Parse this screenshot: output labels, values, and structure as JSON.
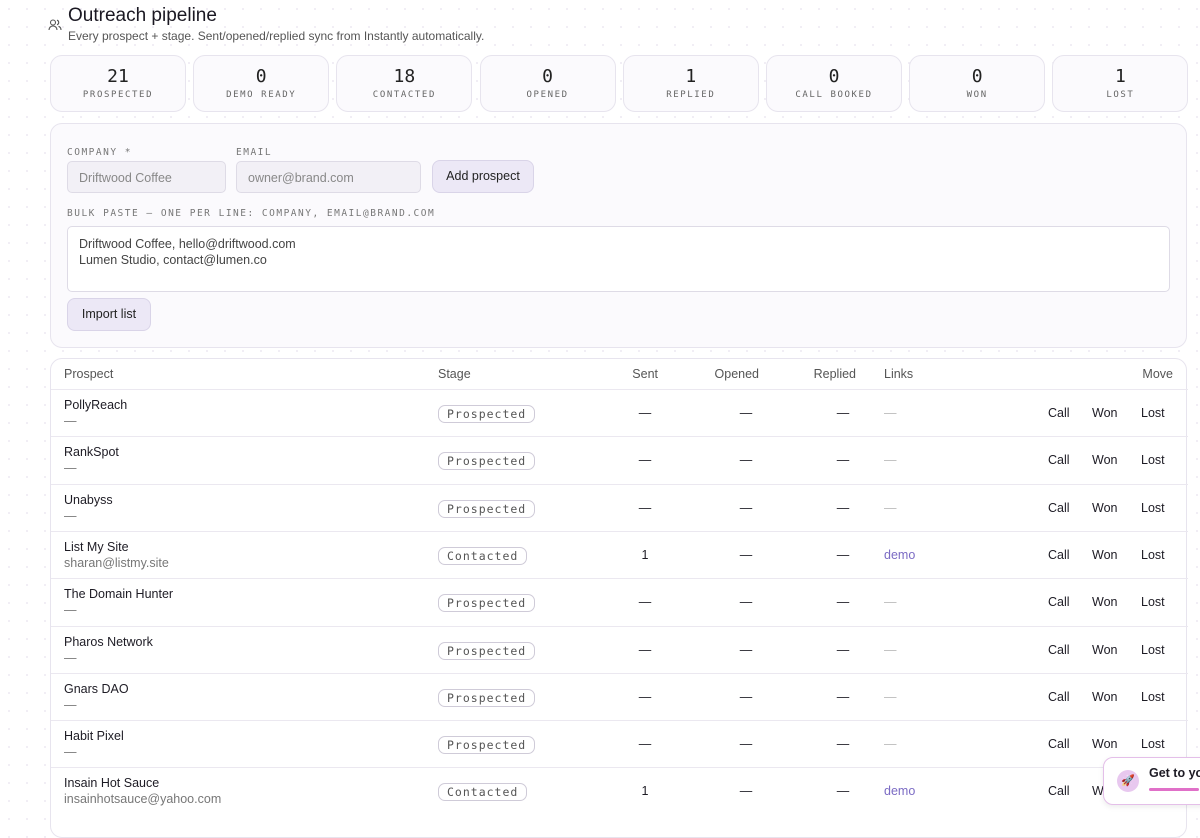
{
  "header": {
    "title": "Outreach pipeline",
    "subtitle": "Every prospect + stage. Sent/opened/replied sync from Instantly automatically."
  },
  "stats": [
    {
      "value": 21,
      "label": "PROSPECTED"
    },
    {
      "value": 0,
      "label": "DEMO READY"
    },
    {
      "value": 18,
      "label": "CONTACTED"
    },
    {
      "value": 0,
      "label": "OPENED"
    },
    {
      "value": 1,
      "label": "REPLIED"
    },
    {
      "value": 0,
      "label": "CALL BOOKED"
    },
    {
      "value": 0,
      "label": "WON"
    },
    {
      "value": 1,
      "label": "LOST"
    }
  ],
  "form": {
    "company_label": "COMPANY *",
    "company_placeholder": "Driftwood Coffee",
    "email_label": "EMAIL",
    "email_placeholder": "owner@brand.com",
    "add_button": "Add prospect",
    "bulk_label": "BULK PASTE — ONE PER LINE: COMPANY, EMAIL@BRAND.COM",
    "bulk_placeholder": "Driftwood Coffee, hello@driftwood.com\nLumen Studio, contact@lumen.co",
    "import_button": "Import list"
  },
  "table": {
    "columns": [
      "Prospect",
      "Stage",
      "Sent",
      "Opened",
      "Replied",
      "Links",
      "Move"
    ],
    "actions": [
      "Call",
      "Won",
      "Lost"
    ],
    "rows": [
      {
        "name": "PollyReach",
        "email": "—",
        "stage": "Prospected",
        "sent": "—",
        "opened": "—",
        "replied": "—",
        "links": "—"
      },
      {
        "name": "RankSpot",
        "email": "—",
        "stage": "Prospected",
        "sent": "—",
        "opened": "—",
        "replied": "—",
        "links": "—"
      },
      {
        "name": "Unabyss",
        "email": "—",
        "stage": "Prospected",
        "sent": "—",
        "opened": "—",
        "replied": "—",
        "links": "—"
      },
      {
        "name": "List My Site",
        "email": "sharan@listmy.site",
        "stage": "Contacted",
        "sent": 1,
        "opened": "—",
        "replied": "—",
        "links": "demo"
      },
      {
        "name": "The Domain Hunter",
        "email": "—",
        "stage": "Prospected",
        "sent": "—",
        "opened": "—",
        "replied": "—",
        "links": "—"
      },
      {
        "name": "Pharos Network",
        "email": "—",
        "stage": "Prospected",
        "sent": "—",
        "opened": "—",
        "replied": "—",
        "links": "—"
      },
      {
        "name": "Gnars DAO",
        "email": "—",
        "stage": "Prospected",
        "sent": "—",
        "opened": "—",
        "replied": "—",
        "links": "—"
      },
      {
        "name": "Habit Pixel",
        "email": "—",
        "stage": "Prospected",
        "sent": "—",
        "opened": "—",
        "replied": "—",
        "links": "—"
      },
      {
        "name": "Insain Hot Sauce",
        "email": "insainhotsauce@yahoo.com",
        "stage": "Contacted",
        "sent": 1,
        "opened": "—",
        "replied": "—",
        "links": "demo"
      }
    ]
  },
  "toast": {
    "text": "Get to yo"
  }
}
